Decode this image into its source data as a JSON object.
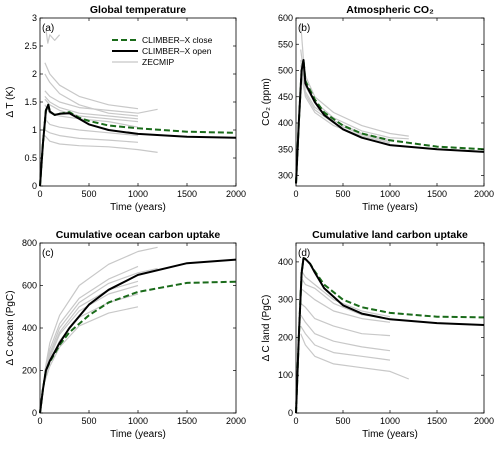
{
  "figure": {
    "legend": {
      "entries": [
        {
          "label": "CLIMBER–X close",
          "color": "#1a6b1a",
          "dash": "6,3",
          "width": 2
        },
        {
          "label": "CLIMBER–X open",
          "color": "#000000",
          "dash": "",
          "width": 2
        },
        {
          "label": "ZECMIP",
          "color": "#c8c8c8",
          "dash": "",
          "width": 1.2
        }
      ]
    }
  },
  "chart_data": [
    {
      "type": "line",
      "title": "Global temperature",
      "letter": "(a)",
      "xlabel": "Time (years)",
      "ylabel": "Δ T (K)",
      "xlim": [
        0,
        2000
      ],
      "ylim": [
        0,
        3
      ],
      "xticks": [
        0,
        500,
        1000,
        1500,
        2000
      ],
      "yticks": [
        0,
        0.5,
        1,
        1.5,
        2,
        2.5,
        3
      ],
      "ytick_labels": [
        "0",
        "0.5",
        "1",
        "1.5",
        "2",
        "2.5",
        "3"
      ],
      "series": [
        {
          "name": "CLIMBER–X close",
          "x": [
            0,
            30,
            60,
            85,
            100,
            150,
            200,
            300,
            400,
            500,
            700,
            1000,
            1500,
            2000
          ],
          "y": [
            0,
            0.75,
            1.35,
            1.45,
            1.33,
            1.27,
            1.29,
            1.32,
            1.22,
            1.16,
            1.08,
            1.03,
            0.97,
            0.95
          ]
        },
        {
          "name": "CLIMBER–X open",
          "x": [
            0,
            30,
            60,
            85,
            100,
            150,
            200,
            300,
            400,
            500,
            700,
            1000,
            1500,
            2000
          ],
          "y": [
            0,
            0.75,
            1.35,
            1.45,
            1.33,
            1.27,
            1.29,
            1.3,
            1.2,
            1.1,
            1.0,
            0.93,
            0.88,
            0.86
          ]
        },
        {
          "name": "",
          "x": [
            60,
            80,
            100,
            150,
            200
          ],
          "y": [
            2.8,
            2.55,
            2.7,
            2.6,
            2.7
          ]
        },
        {
          "name": "",
          "x": [
            50,
            100,
            200,
            400,
            700,
            1000
          ],
          "y": [
            2.2,
            2.0,
            1.8,
            1.6,
            1.45,
            1.38
          ]
        },
        {
          "name": "",
          "x": [
            50,
            100,
            200,
            400,
            700,
            1000
          ],
          "y": [
            2.0,
            1.85,
            1.65,
            1.45,
            1.3,
            1.25
          ]
        },
        {
          "name": "",
          "x": [
            50,
            100,
            200,
            400,
            700,
            1000,
            1200
          ],
          "y": [
            1.7,
            1.6,
            1.5,
            1.4,
            1.35,
            1.3,
            1.37
          ]
        },
        {
          "name": "",
          "x": [
            50,
            100,
            200,
            400,
            700,
            1000
          ],
          "y": [
            1.6,
            1.5,
            1.4,
            1.3,
            1.25,
            1.2
          ]
        },
        {
          "name": "",
          "x": [
            50,
            100,
            200,
            400,
            700,
            1000
          ],
          "y": [
            1.55,
            1.45,
            1.35,
            1.25,
            1.2,
            1.15
          ]
        },
        {
          "name": "",
          "x": [
            50,
            100,
            200,
            400,
            700,
            1000
          ],
          "y": [
            1.45,
            1.3,
            1.25,
            1.2,
            1.15,
            1.05
          ]
        },
        {
          "name": "",
          "x": [
            50,
            100,
            200,
            400,
            700,
            1000
          ],
          "y": [
            1.2,
            1.1,
            1.05,
            1.0,
            0.95,
            0.9
          ]
        },
        {
          "name": "",
          "x": [
            50,
            100,
            200,
            400,
            700,
            1000
          ],
          "y": [
            1.0,
            0.95,
            0.9,
            0.85,
            0.82,
            0.78
          ]
        },
        {
          "name": "",
          "x": [
            50,
            100,
            200,
            400,
            700,
            1000,
            1200
          ],
          "y": [
            0.9,
            0.8,
            0.75,
            0.72,
            0.7,
            0.65,
            0.6
          ]
        }
      ]
    },
    {
      "type": "line",
      "title": "Atmospheric CO₂",
      "letter": "(b)",
      "xlabel": "Time (years)",
      "ylabel": "CO₂ (ppm)",
      "xlim": [
        0,
        2000
      ],
      "ylim": [
        280,
        600
      ],
      "xticks": [
        0,
        500,
        1000,
        1500,
        2000
      ],
      "yticks": [
        300,
        350,
        400,
        450,
        500,
        550,
        600
      ],
      "ytick_labels": [
        "300",
        "350",
        "400",
        "450",
        "500",
        "550",
        "600"
      ],
      "series": [
        {
          "name": "CLIMBER–X close",
          "x": [
            0,
            30,
            60,
            80,
            100,
            200,
            300,
            500,
            700,
            1000,
            1500,
            2000
          ],
          "y": [
            285,
            400,
            500,
            520,
            480,
            445,
            420,
            395,
            380,
            367,
            355,
            350
          ]
        },
        {
          "name": "CLIMBER–X open",
          "x": [
            0,
            30,
            60,
            80,
            100,
            200,
            300,
            500,
            700,
            1000,
            1500,
            2000
          ],
          "y": [
            285,
            400,
            500,
            520,
            475,
            440,
            415,
            388,
            372,
            358,
            350,
            345
          ]
        },
        {
          "name": "",
          "x": [
            50,
            80,
            100,
            200,
            400,
            700,
            1000,
            1200
          ],
          "y": [
            590,
            520,
            490,
            450,
            420,
            395,
            380,
            375
          ]
        },
        {
          "name": "",
          "x": [
            50,
            100,
            200,
            400,
            700,
            1000,
            1200
          ],
          "y": [
            540,
            470,
            440,
            410,
            385,
            372,
            370
          ]
        },
        {
          "name": "",
          "x": [
            50,
            100,
            200,
            400,
            700,
            1000
          ],
          "y": [
            520,
            460,
            430,
            405,
            380,
            368
          ]
        },
        {
          "name": "",
          "x": [
            50,
            100,
            200,
            400,
            700,
            1000
          ],
          "y": [
            510,
            455,
            425,
            400,
            378,
            365
          ]
        },
        {
          "name": "",
          "x": [
            50,
            100,
            200,
            400,
            700,
            1000
          ],
          "y": [
            500,
            450,
            420,
            395,
            375,
            362
          ]
        }
      ]
    },
    {
      "type": "line",
      "title": "Cumulative ocean carbon uptake",
      "letter": "(c)",
      "xlabel": "Time (years)",
      "ylabel": "Δ C ocean (PgC)",
      "xlim": [
        0,
        2000
      ],
      "ylim": [
        0,
        800
      ],
      "xticks": [
        0,
        500,
        1000,
        1500,
        2000
      ],
      "yticks": [
        0,
        200,
        400,
        600,
        800
      ],
      "ytick_labels": [
        "0",
        "200",
        "400",
        "600",
        "800"
      ],
      "series": [
        {
          "name": "CLIMBER–X close",
          "x": [
            0,
            30,
            60,
            100,
            200,
            300,
            500,
            700,
            1000,
            1500,
            2000
          ],
          "y": [
            0,
            110,
            200,
            240,
            320,
            380,
            460,
            520,
            570,
            612,
            618
          ]
        },
        {
          "name": "CLIMBER–X open",
          "x": [
            0,
            30,
            60,
            100,
            200,
            300,
            500,
            700,
            1000,
            1500,
            2000
          ],
          "y": [
            0,
            110,
            200,
            245,
            330,
            400,
            510,
            580,
            650,
            705,
            722
          ]
        },
        {
          "name": "",
          "x": [
            50,
            100,
            200,
            400,
            700,
            1000,
            1200
          ],
          "y": [
            200,
            330,
            460,
            600,
            700,
            760,
            780
          ]
        },
        {
          "name": "",
          "x": [
            50,
            100,
            200,
            400,
            700,
            1000
          ],
          "y": [
            190,
            300,
            420,
            540,
            630,
            690
          ]
        },
        {
          "name": "",
          "x": [
            50,
            100,
            200,
            400,
            700,
            1000,
            1200
          ],
          "y": [
            180,
            280,
            400,
            520,
            610,
            660,
            680
          ]
        },
        {
          "name": "",
          "x": [
            50,
            100,
            200,
            400,
            700,
            1000
          ],
          "y": [
            180,
            270,
            380,
            500,
            580,
            620
          ]
        },
        {
          "name": "",
          "x": [
            50,
            100,
            200,
            400,
            700,
            1000
          ],
          "y": [
            170,
            260,
            370,
            480,
            560,
            600
          ]
        },
        {
          "name": "",
          "x": [
            50,
            100,
            200,
            400,
            700,
            1000
          ],
          "y": [
            160,
            240,
            340,
            450,
            520,
            560
          ]
        },
        {
          "name": "",
          "x": [
            50,
            100,
            200,
            400,
            700,
            1000
          ],
          "y": [
            150,
            220,
            310,
            410,
            470,
            500
          ]
        }
      ]
    },
    {
      "type": "line",
      "title": "Cumulative land carbon uptake",
      "letter": "(d)",
      "xlabel": "Time (years)",
      "ylabel": "Δ C land (PgC)",
      "xlim": [
        0,
        2000
      ],
      "ylim": [
        0,
        450
      ],
      "xticks": [
        0,
        500,
        1000,
        1500,
        2000
      ],
      "yticks": [
        0,
        100,
        200,
        300,
        400
      ],
      "ytick_labels": [
        "0",
        "100",
        "200",
        "300",
        "400"
      ],
      "series": [
        {
          "name": "CLIMBER–X close",
          "x": [
            0,
            30,
            60,
            80,
            100,
            150,
            200,
            300,
            500,
            700,
            1000,
            1500,
            2000
          ],
          "y": [
            0,
            200,
            370,
            410,
            408,
            395,
            375,
            340,
            300,
            280,
            265,
            255,
            253
          ]
        },
        {
          "name": "CLIMBER–X open",
          "x": [
            0,
            30,
            60,
            80,
            100,
            150,
            200,
            300,
            500,
            700,
            1000,
            1500,
            2000
          ],
          "y": [
            0,
            200,
            370,
            410,
            408,
            395,
            372,
            330,
            285,
            263,
            248,
            238,
            233
          ]
        },
        {
          "name": "",
          "x": [
            50,
            100,
            200,
            400,
            700,
            1000
          ],
          "y": [
            380,
            360,
            340,
            300,
            270,
            255
          ]
        },
        {
          "name": "",
          "x": [
            50,
            100,
            200,
            400,
            700,
            1000
          ],
          "y": [
            360,
            340,
            330,
            290,
            260,
            250
          ]
        },
        {
          "name": "",
          "x": [
            50,
            100,
            200,
            400,
            700,
            1000
          ],
          "y": [
            330,
            320,
            300,
            270,
            250,
            240
          ]
        },
        {
          "name": "",
          "x": [
            50,
            100,
            200,
            400,
            700,
            1000
          ],
          "y": [
            290,
            280,
            250,
            230,
            210,
            205
          ]
        },
        {
          "name": "",
          "x": [
            50,
            100,
            200,
            400,
            700,
            1000
          ],
          "y": [
            260,
            240,
            210,
            190,
            175,
            165
          ]
        },
        {
          "name": "",
          "x": [
            50,
            100,
            200,
            400,
            700,
            1000
          ],
          "y": [
            230,
            210,
            180,
            160,
            150,
            140
          ]
        },
        {
          "name": "",
          "x": [
            50,
            100,
            200,
            400,
            700,
            1000,
            1200
          ],
          "y": [
            210,
            180,
            150,
            130,
            120,
            110,
            90
          ]
        }
      ]
    }
  ]
}
